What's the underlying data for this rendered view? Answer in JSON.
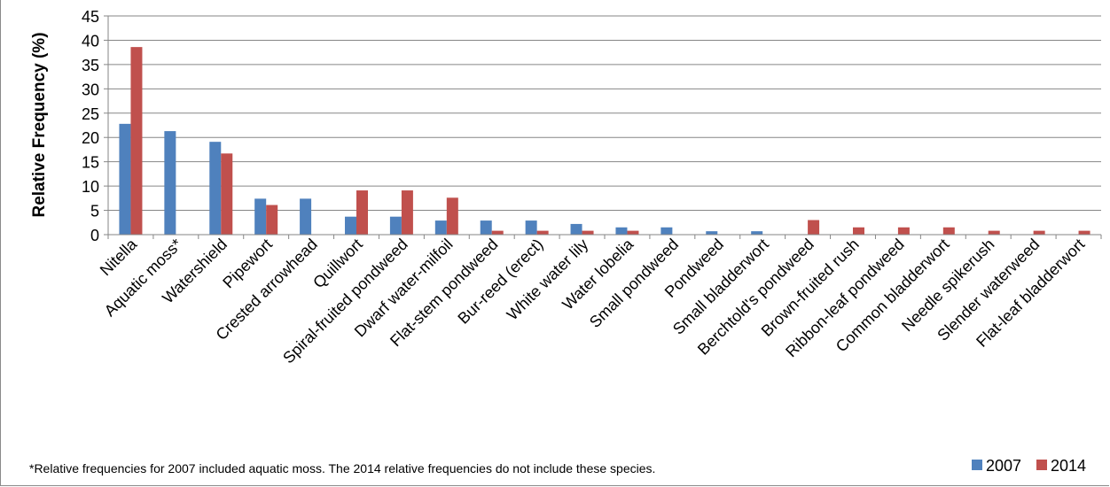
{
  "chart_data": {
    "type": "bar",
    "ylabel": "Relative Frequency (%)",
    "xlabel": "",
    "ylim": [
      0,
      45
    ],
    "yticks": [
      0,
      5,
      10,
      15,
      20,
      25,
      30,
      35,
      40,
      45
    ],
    "grid": true,
    "legend": "bottom-right",
    "categories": [
      "Nitella",
      "Aquatic moss*",
      "Watershield",
      "Pipewort",
      "Crested arrowhead",
      "Quillwort",
      "Spiral-fruited pondweed",
      "Dwarf water-milfoil",
      "Flat-stem pondweed",
      "Bur-reed (erect)",
      "White water lily",
      "Water lobelia",
      "Small pondweed",
      "Pondweed",
      "Small bladderwort",
      "Berchtold's pondweed",
      "Brown-fruited rush",
      "Ribbon-leaf pondweed",
      "Common bladderwort",
      "Needle spikerush",
      "Slender waterweed",
      "Flat-leaf bladderwort"
    ],
    "series": [
      {
        "name": "2007",
        "color": "#4F81BD",
        "values": [
          22.8,
          21.3,
          19.1,
          7.4,
          7.4,
          3.7,
          3.7,
          2.9,
          2.9,
          2.9,
          2.2,
          1.5,
          1.5,
          0.7,
          0.7,
          0,
          0,
          0,
          0,
          0,
          0,
          0
        ]
      },
      {
        "name": "2014",
        "color": "#C0504D",
        "values": [
          38.6,
          0,
          16.7,
          6.1,
          0,
          9.1,
          9.1,
          7.6,
          0.8,
          0.8,
          0.8,
          0.8,
          0,
          0,
          0,
          3.0,
          1.5,
          1.5,
          1.5,
          0.8,
          0.8,
          0.8
        ]
      }
    ]
  },
  "footnote": "*Relative frequencies for 2007 included aquatic moss. The 2014 relative frequencies do not include these species."
}
